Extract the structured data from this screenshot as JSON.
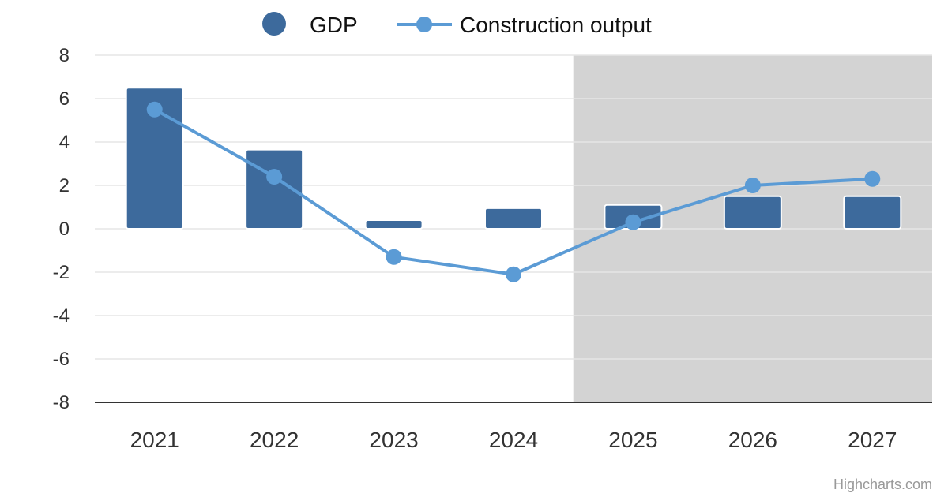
{
  "chart_data": {
    "type": "bar",
    "categories": [
      "2021",
      "2022",
      "2023",
      "2024",
      "2025",
      "2026",
      "2027"
    ],
    "series": [
      {
        "name": "GDP",
        "type": "bar",
        "values": [
          6.5,
          3.65,
          0.4,
          0.95,
          1.1,
          1.5,
          1.5
        ],
        "color": "#3d6a9c"
      },
      {
        "name": "Construction output",
        "type": "line",
        "values": [
          5.5,
          2.4,
          -1.3,
          -2.1,
          0.3,
          2.0,
          2.3
        ],
        "color": "#5b9bd5"
      }
    ],
    "ylim": [
      -8,
      8
    ],
    "yticks": [
      "8",
      "6",
      "4",
      "2",
      "0",
      "-2",
      "-4",
      "-6",
      "-8"
    ],
    "grid": true,
    "legend_position": "top-center",
    "shaded_categories": [
      "2025",
      "2026",
      "2027"
    ],
    "shade_color": "#d3d3d3",
    "credit": "Highcharts.com"
  }
}
